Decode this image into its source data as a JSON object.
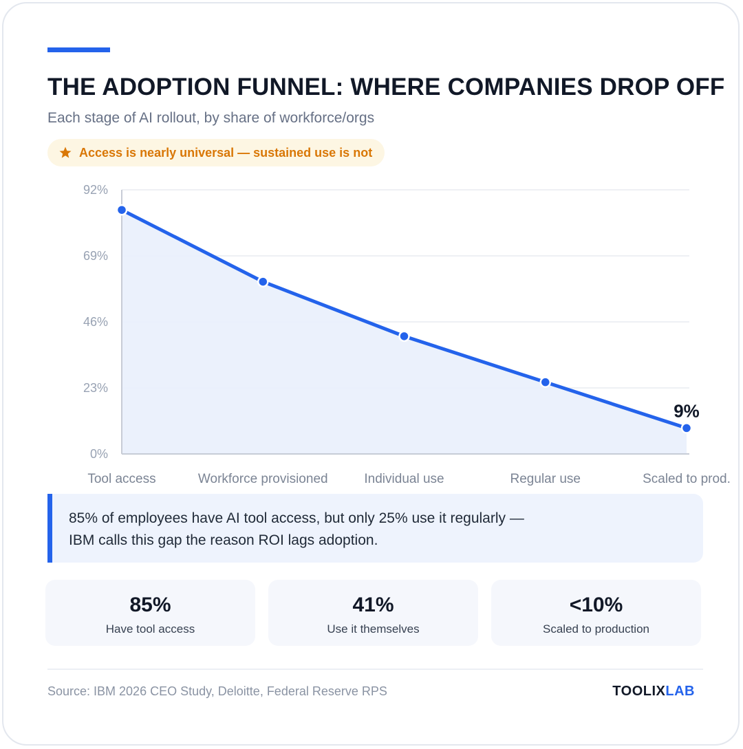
{
  "header": {
    "title": "THE ADOPTION FUNNEL: WHERE COMPANIES DROP OFF",
    "subtitle": "Each stage of AI rollout, by share of workforce/orgs",
    "callout": "Access is nearly universal — sustained use is not",
    "callout_icon": "star-icon"
  },
  "colors": {
    "accent": "#2463eb",
    "callout_text": "#d97706",
    "callout_bg": "#fdf6e3",
    "area_fill": "#e9effc",
    "grid": "#e9ecf1"
  },
  "chart_data": {
    "type": "area",
    "categories": [
      "Tool access",
      "Workforce provisioned",
      "Individual use",
      "Regular use",
      "Scaled to prod."
    ],
    "values": [
      85,
      60,
      41,
      25,
      9
    ],
    "ylim": [
      0,
      92
    ],
    "yticks": [
      0,
      23,
      46,
      69,
      92
    ],
    "ytick_labels": [
      "0%",
      "23%",
      "46%",
      "69%",
      "92%"
    ],
    "end_label": "9%",
    "grid": true,
    "legend": "none"
  },
  "insight": {
    "text": "85% of employees have AI tool access, but only 25% use it regularly — IBM calls this gap the reason ROI lags adoption."
  },
  "stats": [
    {
      "value": "85%",
      "label": "Have tool access"
    },
    {
      "value": "41%",
      "label": "Use it themselves"
    },
    {
      "value": "<10%",
      "label": "Scaled to production"
    }
  ],
  "footer": {
    "source": "Source: IBM 2026 CEO Study, Deloitte, Federal Reserve RPS",
    "brand_part1": "TOOLIX",
    "brand_part2": "LAB"
  }
}
